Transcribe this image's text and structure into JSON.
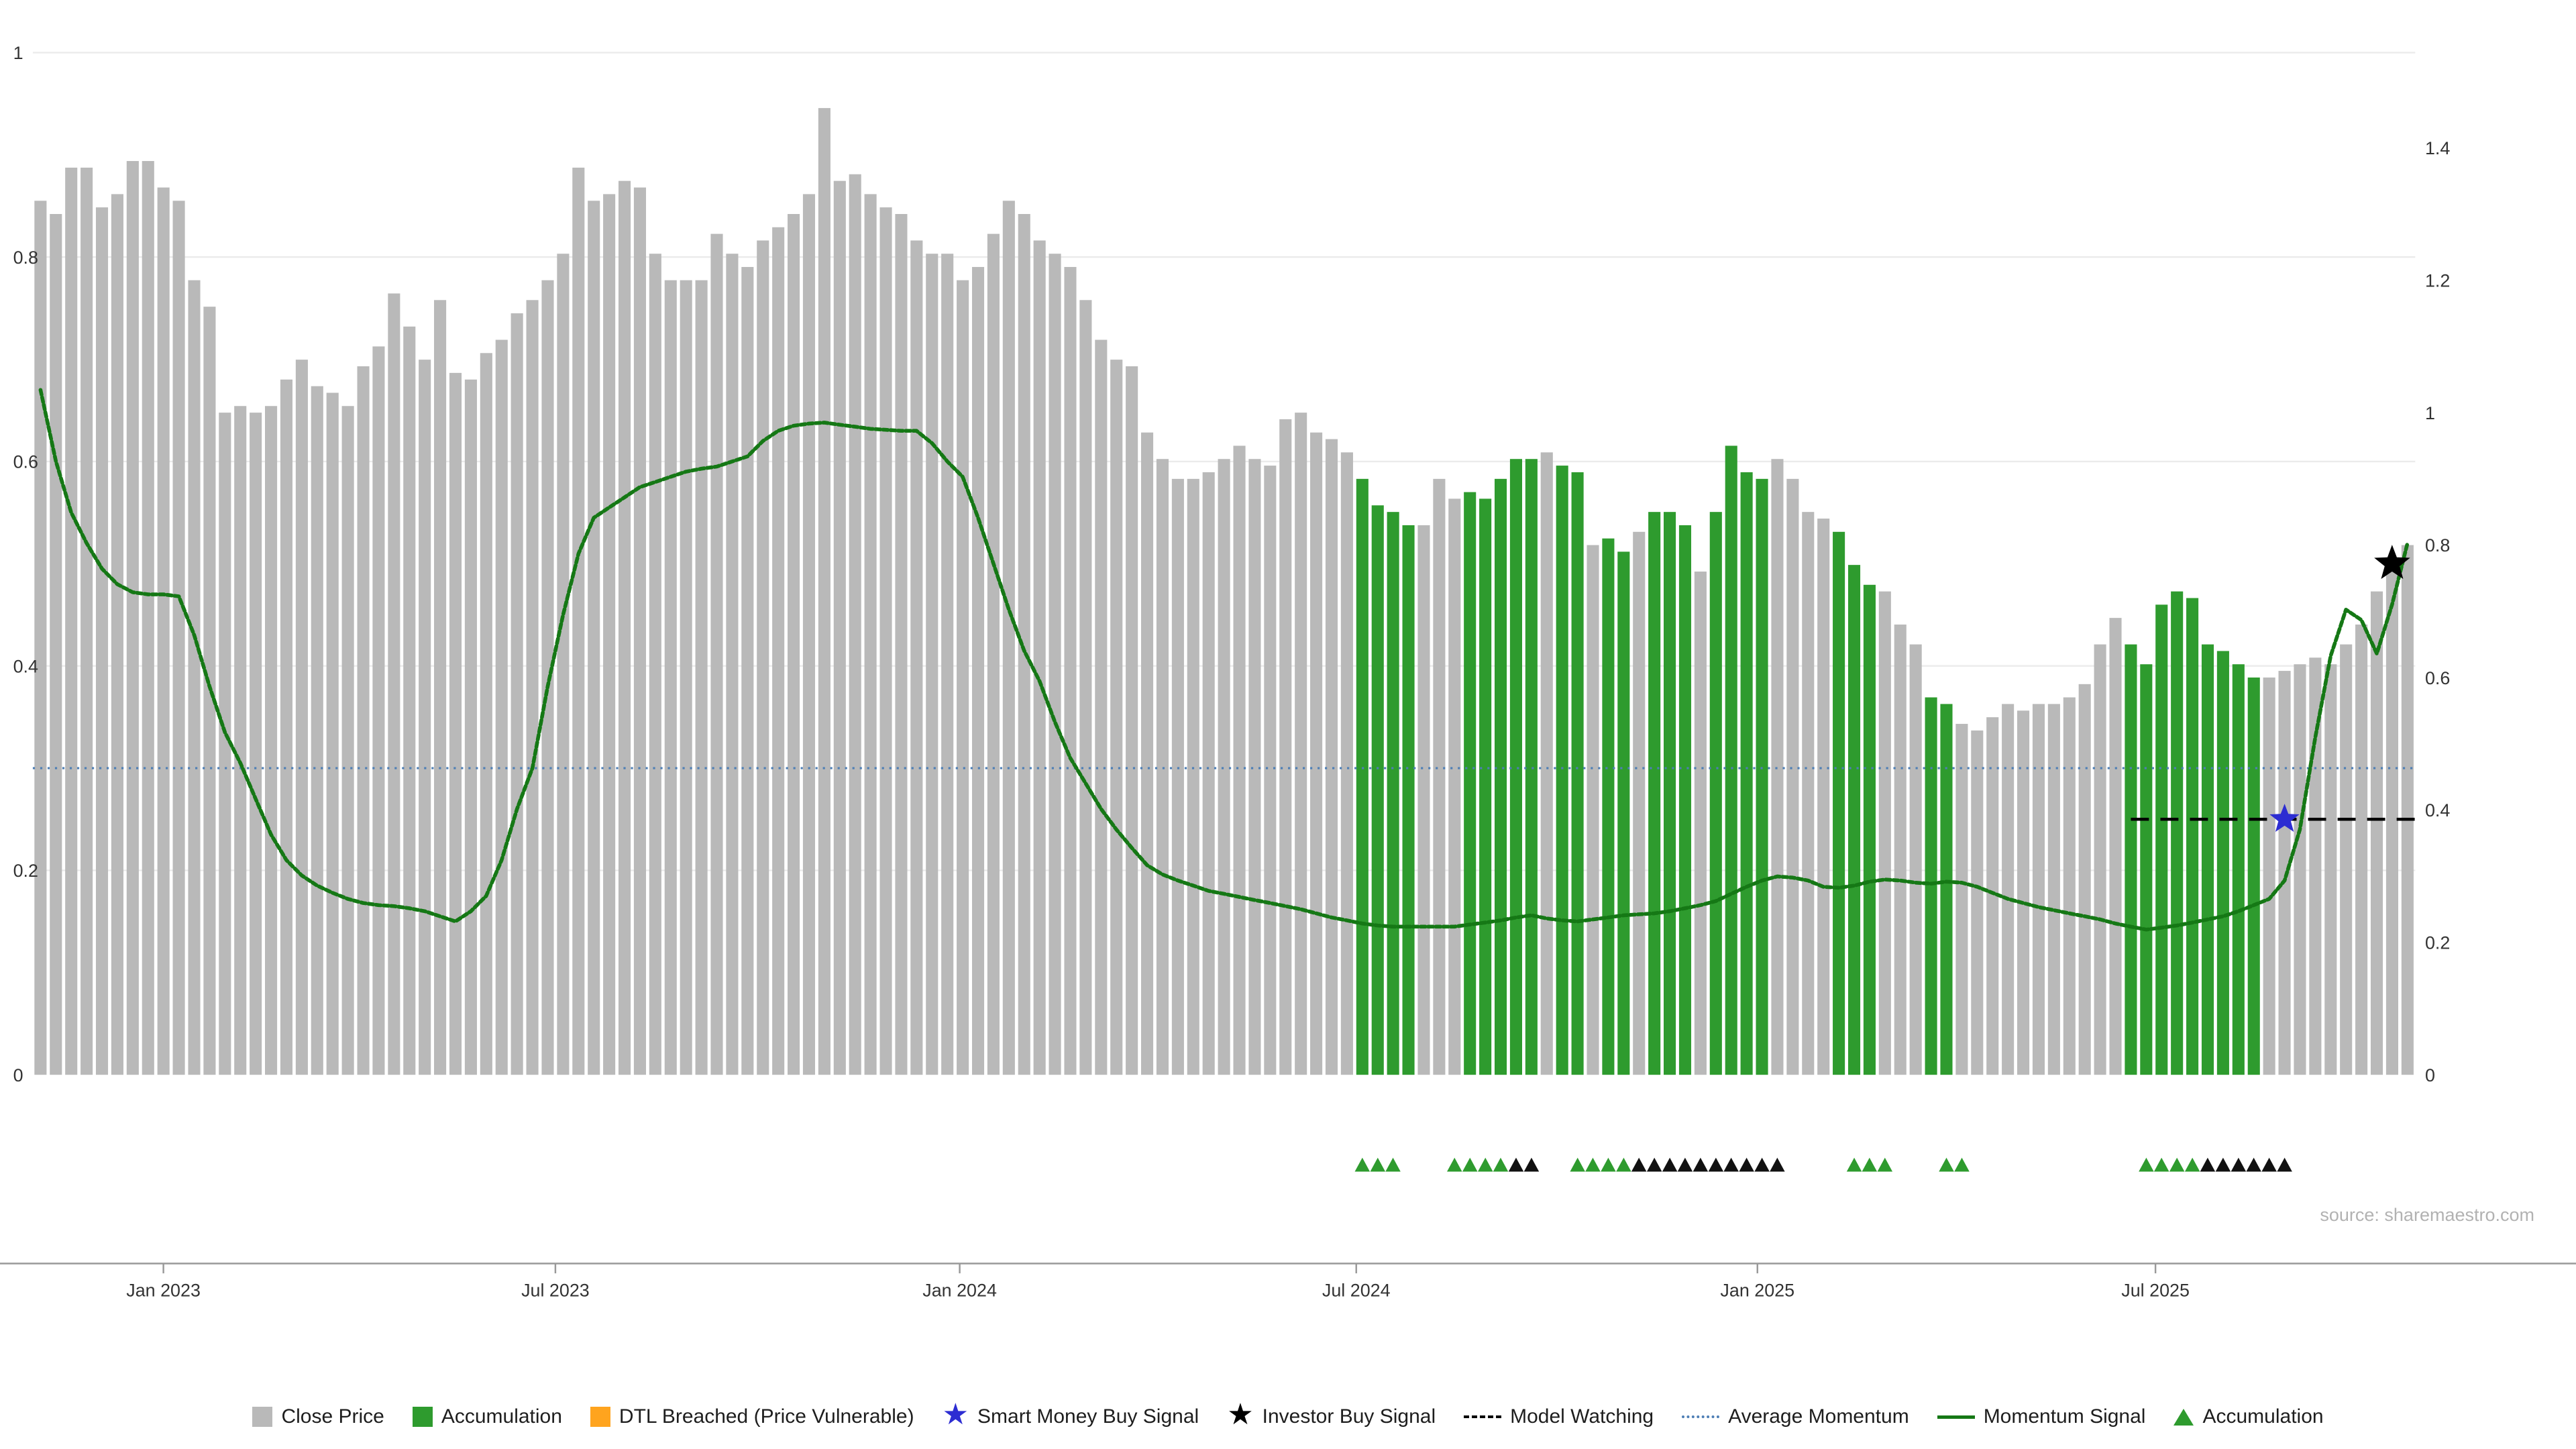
{
  "source_text": "source: sharemaestro.com",
  "legend": {
    "items": [
      {
        "swatch": "square",
        "color": "#b9b9b9",
        "label": "Close Price"
      },
      {
        "swatch": "square",
        "color": "#2e9b2e",
        "label": "Accumulation"
      },
      {
        "swatch": "square",
        "color": "#ffa41e",
        "label": "DTL Breached (Price Vulnerable)"
      },
      {
        "swatch": "star",
        "color": "#2d2dd2",
        "label": "Smart Money Buy Signal"
      },
      {
        "swatch": "star",
        "color": "#000000",
        "label": "Investor Buy Signal"
      },
      {
        "swatch": "dashed-line",
        "color": "#000000",
        "label": "Model Watching"
      },
      {
        "swatch": "dotted-line",
        "color": "#4d7eb5",
        "label": "Average Momentum"
      },
      {
        "swatch": "line",
        "color": "#157815",
        "label": "Momentum Signal"
      },
      {
        "swatch": "triangle",
        "color": "#2e9b2e",
        "label": "Accumulation"
      }
    ]
  },
  "chart_data": {
    "type": "bar",
    "title": "",
    "xlabel": "",
    "ylabel": "",
    "grid": "light-horizontal",
    "legend_position": "bottom-center",
    "left_axis_ticks": [
      0,
      0.2,
      0.4,
      0.6,
      0.8,
      1
    ],
    "left_axis_range": [
      0,
      1.01
    ],
    "right_axis_ticks": [
      0,
      0.2,
      0.4,
      0.6,
      0.8,
      1,
      1.2,
      1.4
    ],
    "right_axis_range": [
      0,
      1.56
    ],
    "x_ticks": [
      {
        "label": "Jan 2023",
        "index": 8.0
      },
      {
        "label": "Jul 2023",
        "index": 33.5
      },
      {
        "label": "Jan 2024",
        "index": 59.8
      },
      {
        "label": "Jul 2024",
        "index": 85.6
      },
      {
        "label": "Jan 2025",
        "index": 111.7
      },
      {
        "label": "Jul 2025",
        "index": 137.6
      }
    ],
    "bars": {
      "name": "Close Price",
      "axis": "right",
      "values": [
        1.32,
        1.3,
        1.37,
        1.37,
        1.31,
        1.33,
        1.38,
        1.38,
        1.34,
        1.32,
        1.2,
        1.16,
        1.0,
        1.01,
        1.0,
        1.01,
        1.05,
        1.08,
        1.04,
        1.03,
        1.01,
        1.07,
        1.1,
        1.18,
        1.13,
        1.08,
        1.17,
        1.06,
        1.05,
        1.09,
        1.11,
        1.15,
        1.17,
        1.2,
        1.24,
        1.37,
        1.32,
        1.33,
        1.35,
        1.34,
        1.24,
        1.2,
        1.2,
        1.2,
        1.27,
        1.24,
        1.22,
        1.26,
        1.28,
        1.3,
        1.33,
        1.46,
        1.35,
        1.36,
        1.33,
        1.31,
        1.3,
        1.26,
        1.24,
        1.24,
        1.2,
        1.22,
        1.27,
        1.32,
        1.3,
        1.26,
        1.24,
        1.22,
        1.17,
        1.11,
        1.08,
        1.07,
        0.97,
        0.93,
        0.9,
        0.9,
        0.91,
        0.93,
        0.95,
        0.93,
        0.92,
        0.99,
        1.0,
        0.97,
        0.96,
        0.94,
        0.9,
        0.86,
        0.85,
        0.83,
        0.83,
        0.9,
        0.87,
        0.88,
        0.87,
        0.9,
        0.93,
        0.93,
        0.94,
        0.92,
        0.91,
        0.8,
        0.81,
        0.79,
        0.82,
        0.85,
        0.85,
        0.83,
        0.76,
        0.85,
        0.95,
        0.91,
        0.9,
        0.93,
        0.9,
        0.85,
        0.84,
        0.82,
        0.77,
        0.74,
        0.73,
        0.68,
        0.65,
        0.57,
        0.56,
        0.53,
        0.52,
        0.54,
        0.56,
        0.55,
        0.56,
        0.56,
        0.57,
        0.59,
        0.65,
        0.69,
        0.65,
        0.62,
        0.71,
        0.73,
        0.72,
        0.65,
        0.64,
        0.62,
        0.6,
        0.6,
        0.61,
        0.62,
        0.63,
        0.62,
        0.65,
        0.68,
        0.73,
        0.76,
        0.8
      ],
      "accumulation_indices": [
        86,
        87,
        88,
        89,
        93,
        94,
        95,
        96,
        97,
        99,
        100,
        102,
        103,
        105,
        106,
        107,
        109,
        110,
        111,
        112,
        117,
        118,
        119,
        123,
        124,
        136,
        137,
        138,
        139,
        140,
        141,
        142,
        143,
        144
      ]
    },
    "momentum": {
      "name": "Momentum Signal",
      "axis": "left",
      "values": [
        0.67,
        0.6,
        0.55,
        0.52,
        0.495,
        0.48,
        0.472,
        0.47,
        0.47,
        0.468,
        0.43,
        0.38,
        0.335,
        0.305,
        0.27,
        0.235,
        0.21,
        0.195,
        0.185,
        0.178,
        0.172,
        0.168,
        0.166,
        0.165,
        0.163,
        0.16,
        0.155,
        0.15,
        0.16,
        0.175,
        0.21,
        0.26,
        0.3,
        0.38,
        0.45,
        0.51,
        0.545,
        0.555,
        0.565,
        0.575,
        0.58,
        0.585,
        0.59,
        0.593,
        0.595,
        0.6,
        0.605,
        0.62,
        0.63,
        0.635,
        0.637,
        0.638,
        0.636,
        0.634,
        0.632,
        0.631,
        0.63,
        0.63,
        0.618,
        0.6,
        0.585,
        0.545,
        0.5,
        0.455,
        0.415,
        0.385,
        0.345,
        0.31,
        0.285,
        0.26,
        0.24,
        0.222,
        0.205,
        0.196,
        0.19,
        0.185,
        0.18,
        0.177,
        0.174,
        0.171,
        0.168,
        0.165,
        0.162,
        0.158,
        0.154,
        0.151,
        0.148,
        0.146,
        0.145,
        0.145,
        0.145,
        0.145,
        0.145,
        0.147,
        0.149,
        0.151,
        0.154,
        0.156,
        0.153,
        0.151,
        0.15,
        0.152,
        0.154,
        0.156,
        0.157,
        0.158,
        0.16,
        0.163,
        0.166,
        0.17,
        0.177,
        0.184,
        0.19,
        0.194,
        0.193,
        0.19,
        0.184,
        0.183,
        0.185,
        0.189,
        0.191,
        0.19,
        0.188,
        0.187,
        0.189,
        0.188,
        0.184,
        0.178,
        0.172,
        0.168,
        0.164,
        0.161,
        0.158,
        0.155,
        0.152,
        0.148,
        0.145,
        0.142,
        0.144,
        0.146,
        0.149,
        0.152,
        0.155,
        0.16,
        0.166,
        0.172,
        0.19,
        0.24,
        0.33,
        0.41,
        0.455,
        0.445,
        0.412,
        0.46,
        0.52
      ]
    },
    "average_momentum": {
      "name": "Average Momentum",
      "axis": "left",
      "value": 0.3
    },
    "model_watching": {
      "name": "Model Watching",
      "axis": "left",
      "value": 0.25,
      "start_index": 136,
      "end_index": 154
    },
    "smart_money_buy_signal": {
      "index": 146,
      "value": 0.25
    },
    "investor_buy_signal": {
      "index": 153,
      "value": 0.5
    },
    "accumulation_marker_indices_green": [
      86,
      87,
      88,
      92,
      93,
      94,
      95,
      100,
      101,
      102,
      103,
      118,
      119,
      120,
      124,
      125,
      137,
      138,
      139,
      140
    ],
    "accumulation_marker_indices_black": [
      96,
      97,
      104,
      105,
      106,
      107,
      108,
      109,
      110,
      111,
      112,
      113,
      141,
      142,
      143,
      144,
      145,
      146
    ],
    "colors": {
      "close_price": "#b9b9b9",
      "accumulation": "#2e9b2e",
      "momentum": "#157815",
      "average_momentum": "#4d7eb5",
      "model_watching": "#000000",
      "smart_money_star": "#2d2dd2",
      "investor_star": "#000000",
      "marker_black": "#111111",
      "gridline": "#ebebeb",
      "axis_line": "#999999",
      "axis_text": "#333333"
    }
  }
}
